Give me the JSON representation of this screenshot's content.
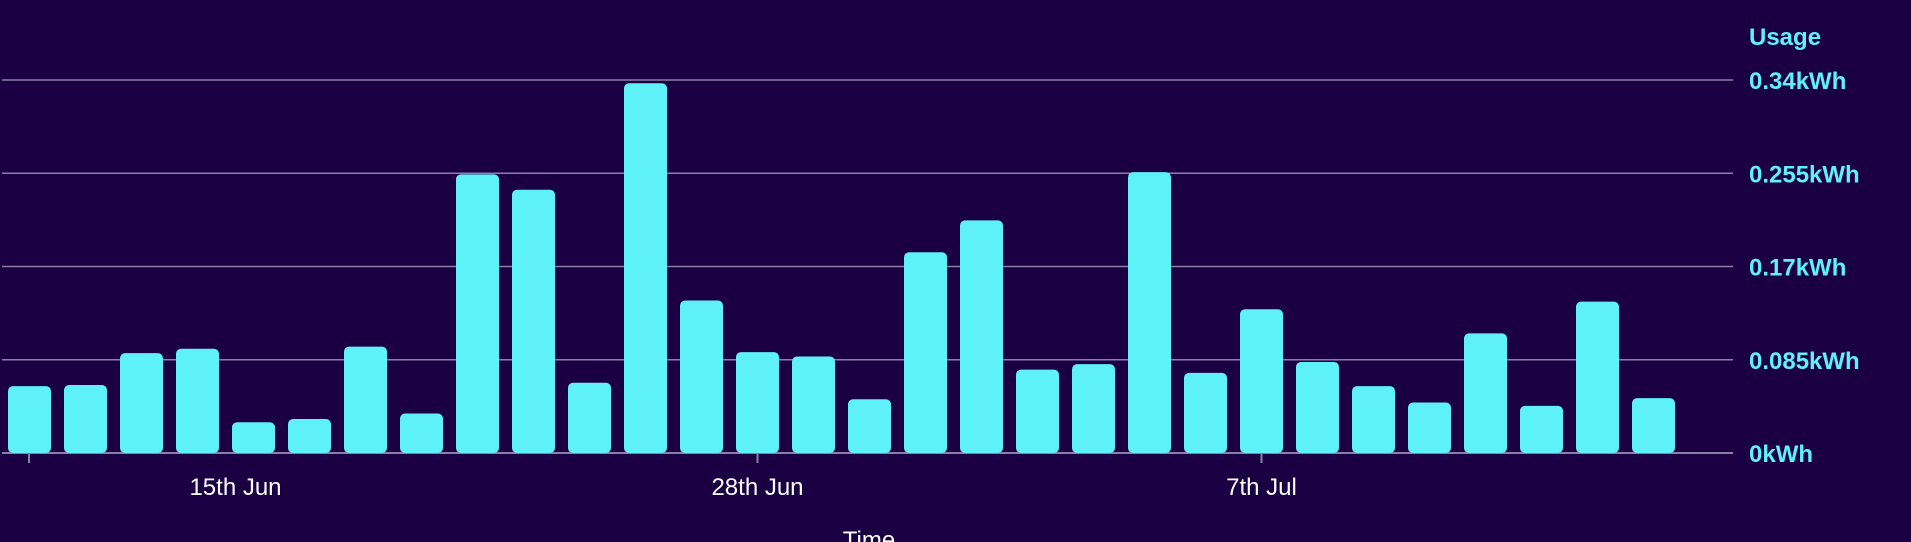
{
  "chart_data": {
    "type": "bar",
    "title": "",
    "ylabel": "Usage",
    "xlabel": "Time",
    "ylim": [
      0,
      0.34
    ],
    "grid": true,
    "y_ticks": [
      "0kWh",
      "0.085kWh",
      "0.17kWh",
      "0.255kWh",
      "0.34kWh"
    ],
    "y_tick_values": [
      0,
      0.085,
      0.17,
      0.255,
      0.34
    ],
    "x_tick_labels": [
      {
        "label": "15th Jun",
        "bar_index": 4
      },
      {
        "label": "28th Jun",
        "bar_index": 13
      },
      {
        "label": "7th Jul",
        "bar_index": 22
      }
    ],
    "values": [
      0.061,
      0.062,
      0.091,
      0.095,
      0.028,
      0.031,
      0.097,
      0.036,
      0.254,
      0.24,
      0.064,
      0.337,
      0.139,
      0.092,
      0.088,
      0.049,
      0.183,
      0.212,
      0.076,
      0.081,
      0.256,
      0.073,
      0.131,
      0.083,
      0.061,
      0.046,
      0.109,
      0.043,
      0.138,
      0.05
    ],
    "bar_color": "#5ef1f7",
    "background": "#1a0043"
  }
}
